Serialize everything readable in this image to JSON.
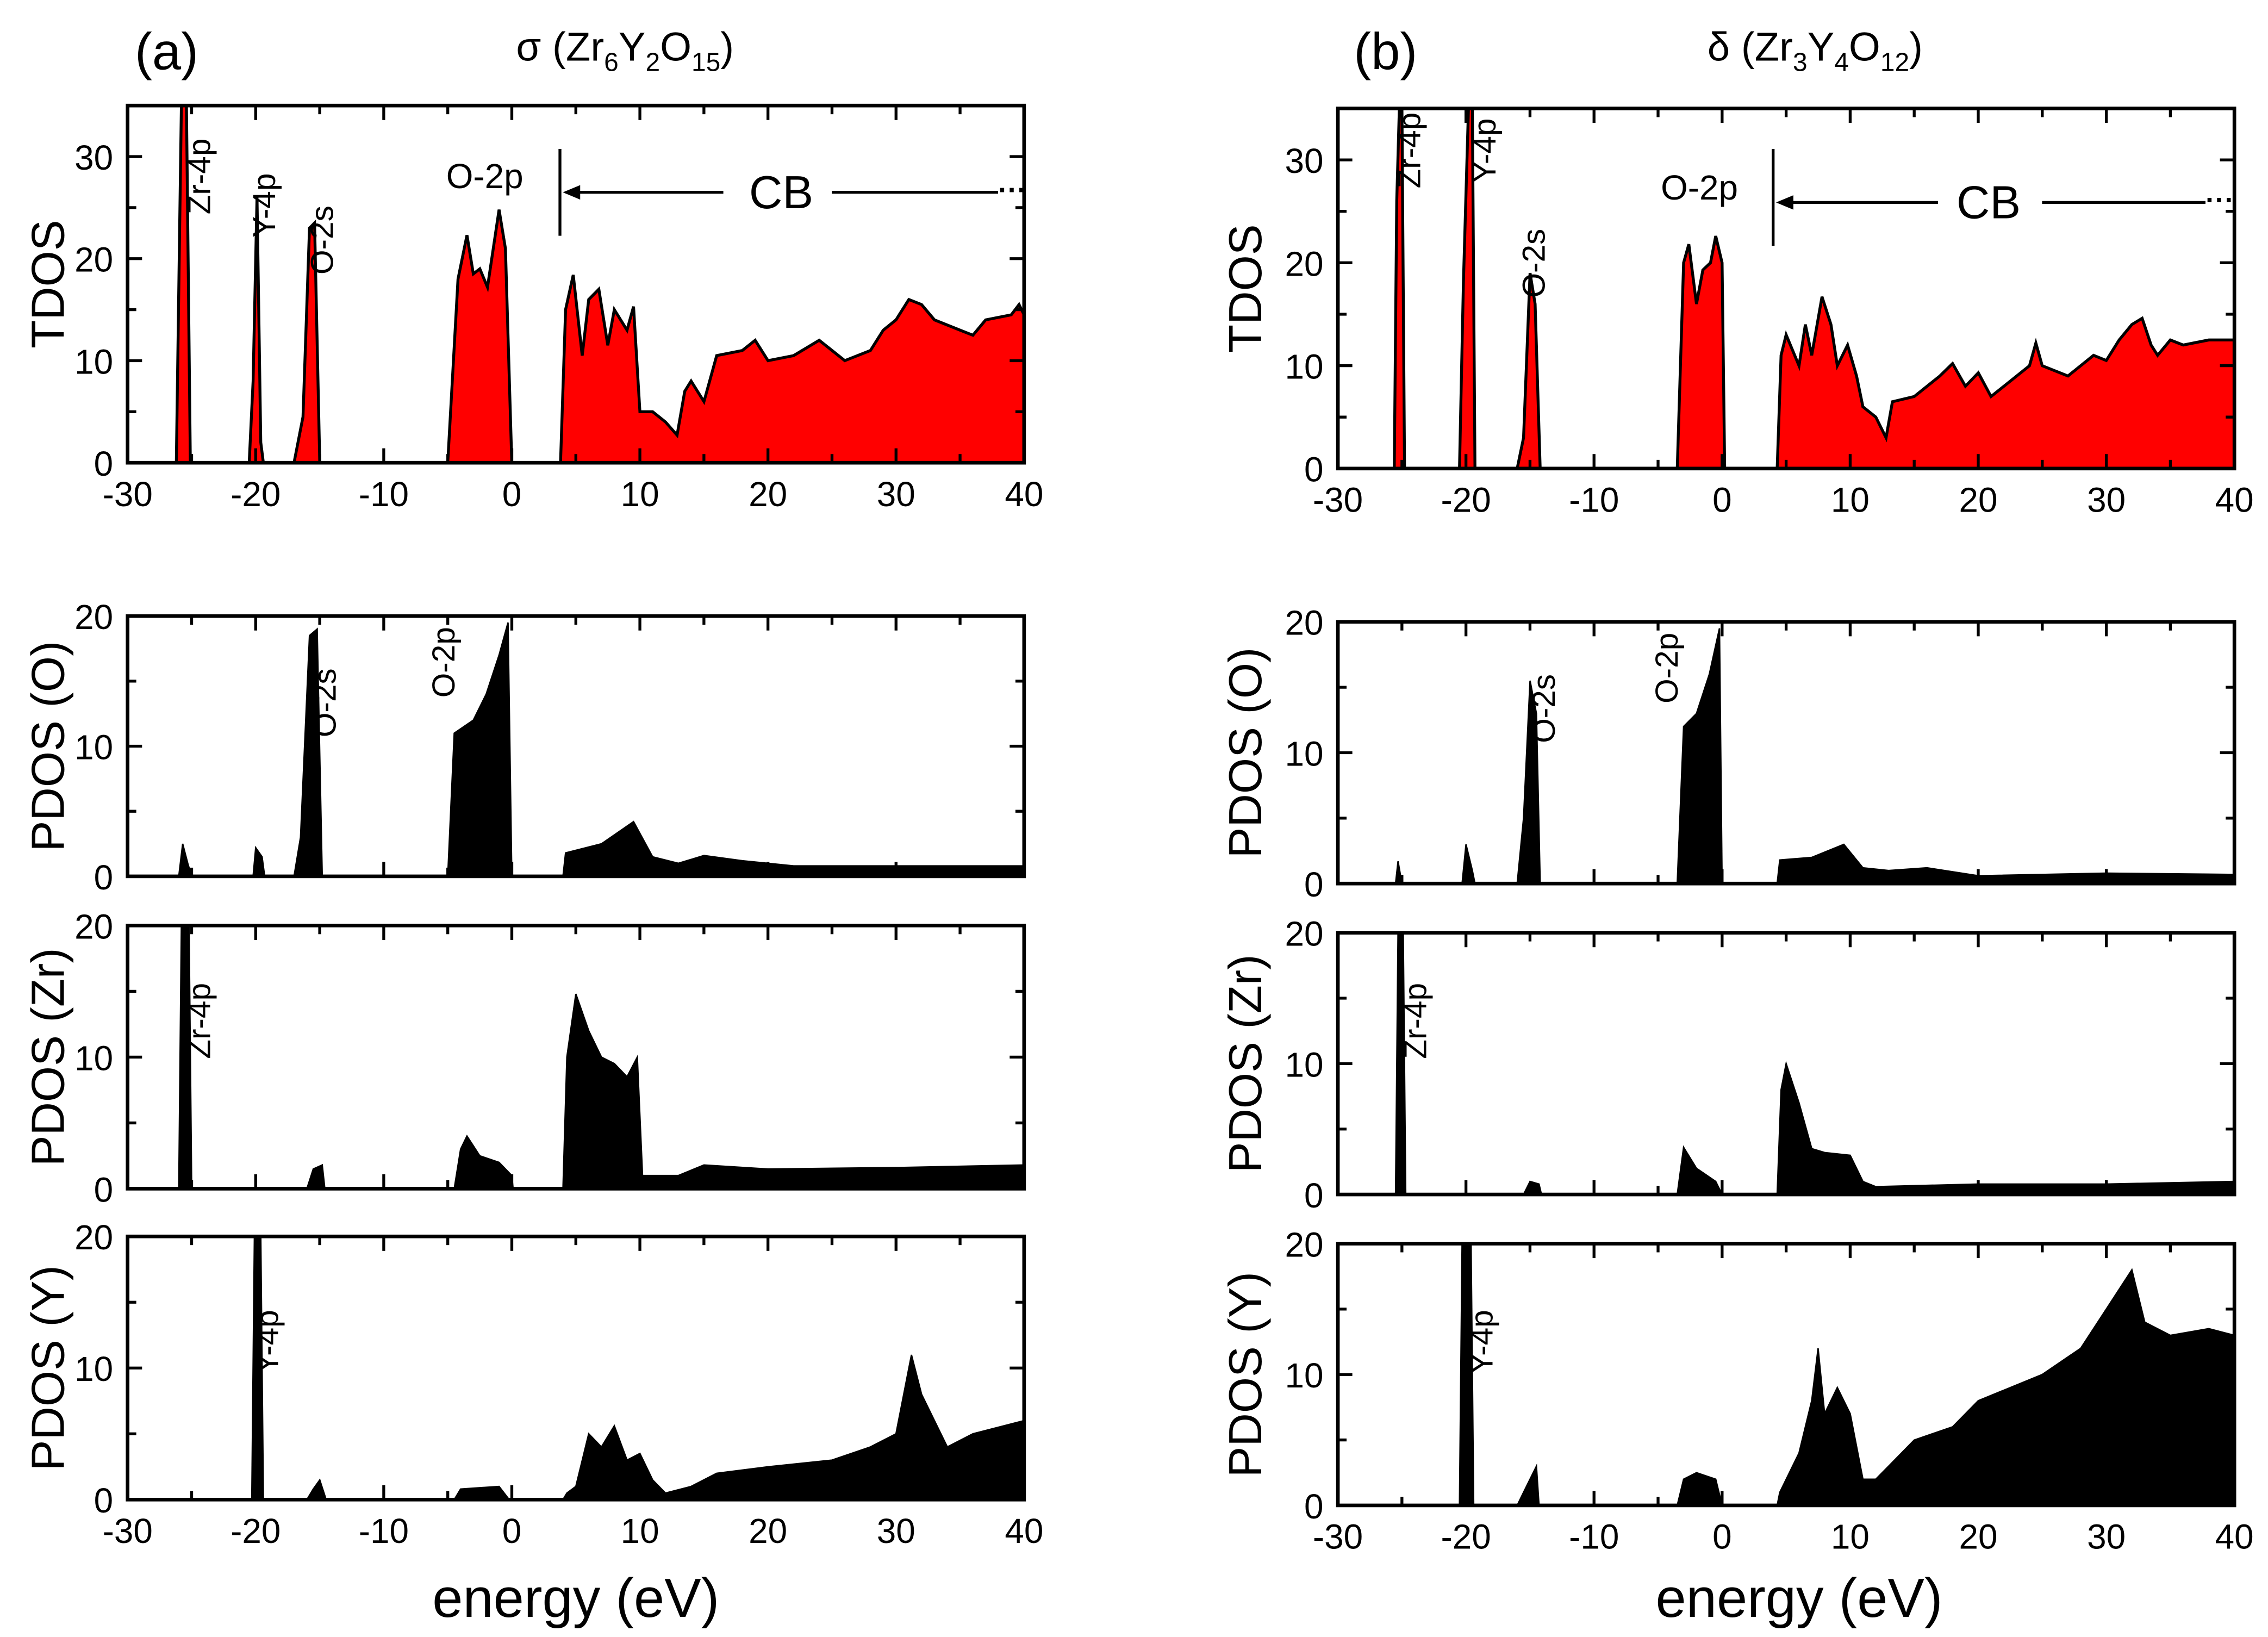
{
  "colors": {
    "tdos_fill": "#ff0000",
    "pdos_fill": "#000000",
    "line": "#000000"
  },
  "figure": {
    "xlabel": "energy (eV)"
  },
  "chart_data": [
    {
      "type": "area",
      "panel_label": "(a)",
      "title": "σ (Zr6Y2O15)",
      "title_parts": {
        "symbol": "σ",
        "el1": "Zr",
        "n1": "6",
        "el2": "Y",
        "n2": "2",
        "el3": "O",
        "n3": "15"
      },
      "ylabel": "TDOS",
      "xlim": [
        -30,
        40
      ],
      "ylim": [
        0,
        35
      ],
      "xticks": [
        "-30",
        "-20",
        "-10",
        "0",
        "10",
        "20",
        "30",
        "40"
      ],
      "yticks": [
        "0",
        "10",
        "20",
        "30"
      ],
      "annotations": [
        "Zr-4p",
        "Y-4p",
        "O-2s",
        "O-2p",
        "CB"
      ],
      "points": [
        [
          -26.2,
          0
        ],
        [
          -25.8,
          35
        ],
        [
          -25.4,
          35
        ],
        [
          -25.1,
          0
        ],
        [
          -20.5,
          0
        ],
        [
          -20.2,
          8
        ],
        [
          -19.9,
          26
        ],
        [
          -19.6,
          2
        ],
        [
          -19.4,
          0
        ],
        [
          -17,
          0
        ],
        [
          -16.3,
          4.5
        ],
        [
          -15.8,
          23
        ],
        [
          -15.4,
          23.5
        ],
        [
          -15,
          0
        ],
        [
          -5,
          0
        ],
        [
          -4.2,
          18
        ],
        [
          -3.5,
          22.3
        ],
        [
          -3,
          18.5
        ],
        [
          -2.5,
          19
        ],
        [
          -1.9,
          17.2
        ],
        [
          -1,
          24.8
        ],
        [
          -0.5,
          21
        ],
        [
          0,
          0
        ],
        [
          3.8,
          0
        ],
        [
          4.2,
          15
        ],
        [
          4.8,
          18.4
        ],
        [
          5.5,
          10.5
        ],
        [
          6,
          16
        ],
        [
          6.8,
          17
        ],
        [
          7.5,
          11.5
        ],
        [
          8,
          15
        ],
        [
          9,
          13
        ],
        [
          9.5,
          15.3
        ],
        [
          10,
          5
        ],
        [
          11,
          5
        ],
        [
          12,
          4
        ],
        [
          12.9,
          2.7
        ],
        [
          13.5,
          7
        ],
        [
          14,
          8
        ],
        [
          15,
          6
        ],
        [
          16,
          10.5
        ],
        [
          18,
          11
        ],
        [
          19,
          12
        ],
        [
          20,
          10
        ],
        [
          22,
          10.5
        ],
        [
          24,
          12
        ],
        [
          26,
          10
        ],
        [
          28,
          11
        ],
        [
          29,
          13
        ],
        [
          30,
          14
        ],
        [
          31,
          16
        ],
        [
          32,
          15.5
        ],
        [
          33,
          14
        ],
        [
          35,
          13
        ],
        [
          36,
          12.5
        ],
        [
          37,
          14
        ],
        [
          39,
          14.5
        ],
        [
          39.6,
          15.5
        ],
        [
          40,
          14.5
        ]
      ]
    },
    {
      "type": "area",
      "ylabel": "PDOS (O)",
      "xlim": [
        -30,
        40
      ],
      "ylim": [
        0,
        20
      ],
      "yticks": [
        "0",
        "10",
        "20"
      ],
      "annotations": [
        "O-2s",
        "O-2p"
      ],
      "points": [
        [
          -26,
          0
        ],
        [
          -25.7,
          2.5
        ],
        [
          -25.3,
          1
        ],
        [
          -25,
          0
        ],
        [
          -20.2,
          0
        ],
        [
          -20,
          2.2
        ],
        [
          -19.5,
          1.5
        ],
        [
          -19.3,
          0
        ],
        [
          -17,
          0
        ],
        [
          -16.5,
          3
        ],
        [
          -15.8,
          18.5
        ],
        [
          -15.2,
          19
        ],
        [
          -14.8,
          0
        ],
        [
          -5,
          0
        ],
        [
          -4.5,
          11
        ],
        [
          -3,
          12
        ],
        [
          -2,
          14
        ],
        [
          -1,
          17
        ],
        [
          -0.3,
          19.5
        ],
        [
          0,
          0
        ],
        [
          4,
          0
        ],
        [
          4.2,
          1.8
        ],
        [
          7,
          2.5
        ],
        [
          9.5,
          4.2
        ],
        [
          11,
          1.5
        ],
        [
          13,
          1
        ],
        [
          15,
          1.6
        ],
        [
          18,
          1.2
        ],
        [
          22,
          0.8
        ],
        [
          30,
          0.8
        ],
        [
          40,
          0.8
        ]
      ]
    },
    {
      "type": "area",
      "ylabel": "PDOS (Zr)",
      "xlim": [
        -30,
        40
      ],
      "ylim": [
        0,
        20
      ],
      "yticks": [
        "0",
        "10",
        "20"
      ],
      "annotations": [
        "Zr-4p"
      ],
      "points": [
        [
          -26,
          0
        ],
        [
          -25.8,
          20
        ],
        [
          -25.2,
          20
        ],
        [
          -25,
          0
        ],
        [
          -16,
          0
        ],
        [
          -15.5,
          1.5
        ],
        [
          -14.8,
          1.8
        ],
        [
          -14.6,
          0
        ],
        [
          -4.5,
          0
        ],
        [
          -4,
          3
        ],
        [
          -3.5,
          4
        ],
        [
          -2.5,
          2.5
        ],
        [
          -1,
          2
        ],
        [
          0,
          1
        ],
        [
          0.1,
          0
        ],
        [
          4,
          0
        ],
        [
          4.3,
          10
        ],
        [
          5,
          14.8
        ],
        [
          6,
          12
        ],
        [
          7,
          10
        ],
        [
          8,
          9.5
        ],
        [
          9,
          8.5
        ],
        [
          9.8,
          10
        ],
        [
          10.2,
          1
        ],
        [
          13,
          1
        ],
        [
          15,
          1.8
        ],
        [
          20,
          1.5
        ],
        [
          30,
          1.6
        ],
        [
          40,
          1.8
        ]
      ]
    },
    {
      "type": "area",
      "ylabel": "PDOS (Y)",
      "xlim": [
        -30,
        40
      ],
      "ylim": [
        0,
        20
      ],
      "yticks": [
        "0",
        "10",
        "20"
      ],
      "xticks": [
        "-30",
        "-20",
        "-10",
        "0",
        "10",
        "20",
        "30",
        "40"
      ],
      "annotations": [
        "Y-4p"
      ],
      "points": [
        [
          -20.3,
          0
        ],
        [
          -20.1,
          20
        ],
        [
          -19.6,
          20
        ],
        [
          -19.4,
          0
        ],
        [
          -16,
          0
        ],
        [
          -15.5,
          0.8
        ],
        [
          -15,
          1.5
        ],
        [
          -14.5,
          0
        ],
        [
          -4.5,
          0
        ],
        [
          -4,
          0.8
        ],
        [
          -1,
          1
        ],
        [
          -0.2,
          0
        ],
        [
          4,
          0
        ],
        [
          4.3,
          0.5
        ],
        [
          5,
          1
        ],
        [
          6,
          5
        ],
        [
          7,
          4
        ],
        [
          8,
          5.6
        ],
        [
          9,
          3
        ],
        [
          10,
          3.5
        ],
        [
          11,
          1.5
        ],
        [
          12,
          0.5
        ],
        [
          14,
          1
        ],
        [
          16,
          2
        ],
        [
          20,
          2.5
        ],
        [
          25,
          3
        ],
        [
          28,
          4
        ],
        [
          30,
          5
        ],
        [
          31.2,
          11
        ],
        [
          32,
          8
        ],
        [
          34,
          4
        ],
        [
          36,
          5
        ],
        [
          40,
          6
        ]
      ]
    },
    {
      "type": "area",
      "panel_label": "(b)",
      "title": "δ (Zr3Y4O12)",
      "title_parts": {
        "symbol": "δ",
        "el1": "Zr",
        "n1": "3",
        "el2": "Y",
        "n2": "4",
        "el3": "O",
        "n3": "12"
      },
      "ylabel": "TDOS",
      "xlim": [
        -30,
        40
      ],
      "ylim": [
        0,
        35
      ],
      "xticks": [
        "-30",
        "-20",
        "-10",
        "0",
        "10",
        "20",
        "30",
        "40"
      ],
      "yticks": [
        "0",
        "10",
        "20",
        "30"
      ],
      "annotations": [
        "Zr-4p",
        "Y-4p",
        "O-2s",
        "O-2p",
        "CB"
      ],
      "points": [
        [
          -25.6,
          0
        ],
        [
          -25.4,
          26
        ],
        [
          -25.2,
          35
        ],
        [
          -25,
          35
        ],
        [
          -24.8,
          0
        ],
        [
          -20.5,
          0
        ],
        [
          -20.2,
          18
        ],
        [
          -19.8,
          35
        ],
        [
          -19.5,
          35
        ],
        [
          -19.3,
          0
        ],
        [
          -16,
          0
        ],
        [
          -15.5,
          3
        ],
        [
          -15,
          19
        ],
        [
          -14.6,
          16
        ],
        [
          -14.2,
          0
        ],
        [
          -3.5,
          0
        ],
        [
          -3,
          20
        ],
        [
          -2.6,
          21.8
        ],
        [
          -2,
          16
        ],
        [
          -1.5,
          19.3
        ],
        [
          -0.9,
          20
        ],
        [
          -0.5,
          22.6
        ],
        [
          0,
          20
        ],
        [
          0.2,
          0
        ],
        [
          4.3,
          0
        ],
        [
          4.6,
          11
        ],
        [
          5,
          13
        ],
        [
          6,
          10
        ],
        [
          6.5,
          14
        ],
        [
          7,
          11
        ],
        [
          7.8,
          16.7
        ],
        [
          8.5,
          14
        ],
        [
          9,
          10
        ],
        [
          9.8,
          12
        ],
        [
          10.5,
          9
        ],
        [
          11,
          6
        ],
        [
          12,
          5
        ],
        [
          12.8,
          3
        ],
        [
          13.3,
          6.5
        ],
        [
          15,
          7
        ],
        [
          17,
          9
        ],
        [
          18,
          10.2
        ],
        [
          19,
          8
        ],
        [
          20,
          9.3
        ],
        [
          21,
          7
        ],
        [
          22,
          8
        ],
        [
          24,
          10
        ],
        [
          24.5,
          12.2
        ],
        [
          25,
          10
        ],
        [
          27,
          9
        ],
        [
          28,
          10
        ],
        [
          29,
          11
        ],
        [
          30,
          10.5
        ],
        [
          31,
          12.5
        ],
        [
          32,
          14
        ],
        [
          32.8,
          14.6
        ],
        [
          33.5,
          12
        ],
        [
          34,
          11
        ],
        [
          35,
          12.5
        ],
        [
          36,
          12
        ],
        [
          38,
          12.5
        ],
        [
          40,
          12.5
        ]
      ]
    },
    {
      "type": "area",
      "ylabel": "PDOS (O)",
      "xlim": [
        -30,
        40
      ],
      "ylim": [
        0,
        20
      ],
      "yticks": [
        "0",
        "10",
        "20"
      ],
      "annotations": [
        "O-2s",
        "O-2p"
      ],
      "points": [
        [
          -25.5,
          0
        ],
        [
          -25.3,
          1.7
        ],
        [
          -25,
          0
        ],
        [
          -20.3,
          0
        ],
        [
          -20,
          3
        ],
        [
          -19.5,
          1
        ],
        [
          -19.3,
          0
        ],
        [
          -16,
          0
        ],
        [
          -15.5,
          5
        ],
        [
          -15,
          15.5
        ],
        [
          -14.5,
          13
        ],
        [
          -14.2,
          0
        ],
        [
          -3.5,
          0
        ],
        [
          -3,
          12
        ],
        [
          -2,
          13
        ],
        [
          -1,
          16
        ],
        [
          -0.2,
          19.5
        ],
        [
          0,
          0
        ],
        [
          4.3,
          0
        ],
        [
          4.5,
          1.8
        ],
        [
          7,
          2
        ],
        [
          9.5,
          3
        ],
        [
          11,
          1.2
        ],
        [
          13,
          1
        ],
        [
          16,
          1.2
        ],
        [
          20,
          0.6
        ],
        [
          30,
          0.8
        ],
        [
          40,
          0.7
        ]
      ]
    },
    {
      "type": "area",
      "ylabel": "PDOS (Zr)",
      "xlim": [
        -30,
        40
      ],
      "ylim": [
        0,
        20
      ],
      "yticks": [
        "0",
        "10",
        "20"
      ],
      "annotations": [
        "Zr-4p"
      ],
      "points": [
        [
          -25.5,
          0
        ],
        [
          -25.3,
          20
        ],
        [
          -24.9,
          20
        ],
        [
          -24.7,
          0
        ],
        [
          -15.5,
          0
        ],
        [
          -15,
          1
        ],
        [
          -14.3,
          0.8
        ],
        [
          -14.1,
          0
        ],
        [
          -3.5,
          0
        ],
        [
          -3,
          3.6
        ],
        [
          -2,
          2
        ],
        [
          -0.5,
          1
        ],
        [
          0,
          0
        ],
        [
          4.3,
          0
        ],
        [
          4.6,
          8
        ],
        [
          5,
          10
        ],
        [
          6,
          7
        ],
        [
          7,
          3.5
        ],
        [
          8,
          3.2
        ],
        [
          10,
          3
        ],
        [
          11,
          1
        ],
        [
          12,
          0.6
        ],
        [
          20,
          0.8
        ],
        [
          30,
          0.8
        ],
        [
          40,
          1
        ]
      ]
    },
    {
      "type": "area",
      "ylabel": "PDOS (Y)",
      "xlim": [
        -30,
        40
      ],
      "ylim": [
        0,
        20
      ],
      "yticks": [
        "0",
        "10",
        "20"
      ],
      "xticks": [
        "-30",
        "-20",
        "-10",
        "0",
        "10",
        "20",
        "30",
        "40"
      ],
      "annotations": [
        "Y-4p"
      ],
      "points": [
        [
          -20.5,
          0
        ],
        [
          -20.3,
          20
        ],
        [
          -19.6,
          20
        ],
        [
          -19.4,
          0
        ],
        [
          -16,
          0
        ],
        [
          -15.5,
          1
        ],
        [
          -14.5,
          3
        ],
        [
          -14.3,
          0
        ],
        [
          -3.5,
          0
        ],
        [
          -3,
          2
        ],
        [
          -2,
          2.5
        ],
        [
          -0.5,
          2
        ],
        [
          0,
          0
        ],
        [
          4.3,
          0
        ],
        [
          4.5,
          1
        ],
        [
          6,
          4
        ],
        [
          7,
          8
        ],
        [
          7.5,
          12
        ],
        [
          8,
          7
        ],
        [
          9,
          9
        ],
        [
          10,
          7
        ],
        [
          11,
          2
        ],
        [
          12,
          2
        ],
        [
          13,
          3
        ],
        [
          15,
          5
        ],
        [
          18,
          6
        ],
        [
          20,
          8
        ],
        [
          25,
          10
        ],
        [
          28,
          12
        ],
        [
          30,
          15
        ],
        [
          32,
          18
        ],
        [
          33,
          14
        ],
        [
          35,
          13
        ],
        [
          38,
          13.5
        ],
        [
          40,
          13
        ]
      ]
    }
  ]
}
